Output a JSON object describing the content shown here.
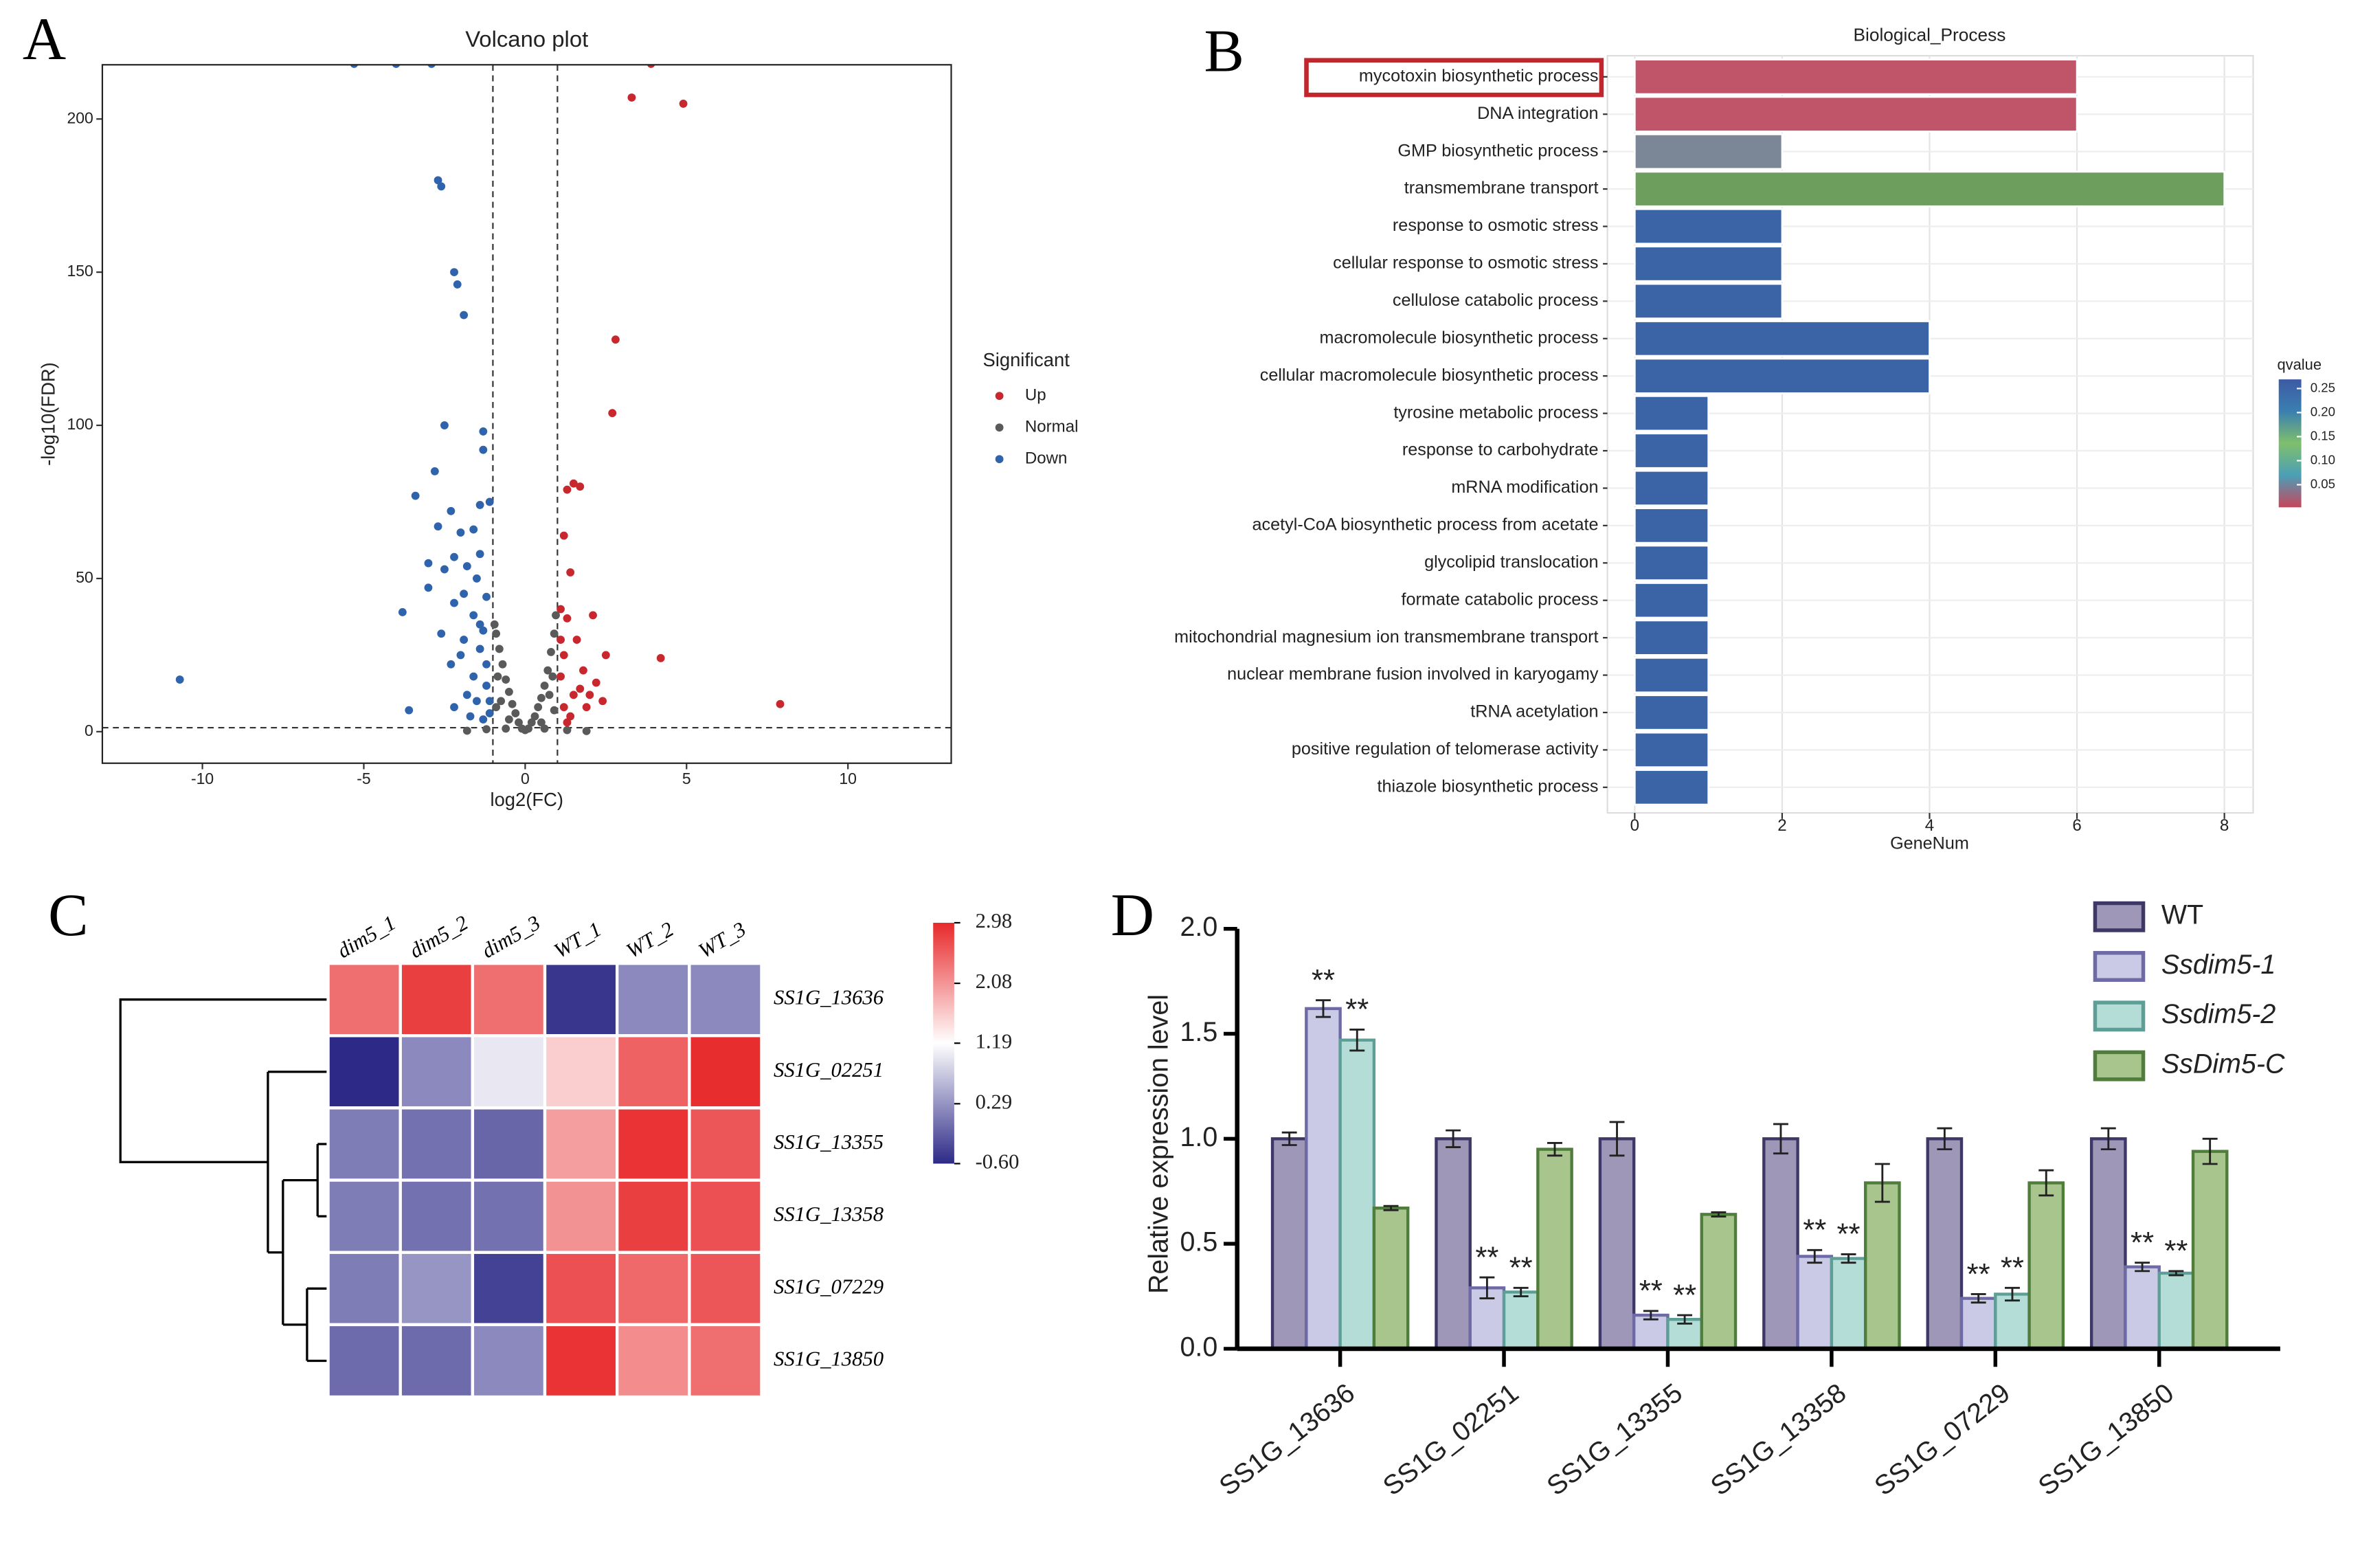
{
  "chart_data": [
    {
      "type": "scatter",
      "panel": "A",
      "title": "Volcano plot",
      "xlabel": "log2(FC)",
      "ylabel": "-log10(FDR)",
      "legend_title": "Significant",
      "xlim": [
        -13.1,
        13.2
      ],
      "ylim": [
        -10.3,
        217.7
      ],
      "xticks": [
        -10,
        -5,
        0,
        5,
        10
      ],
      "yticks": [
        0,
        50,
        100,
        150,
        200
      ],
      "thresholds": {
        "x": [
          -1,
          1
        ],
        "y": 1.3
      },
      "series": [
        {
          "name": "Up",
          "color": "#c8272e",
          "x": [
            3.9,
            3.3,
            4.9,
            2.8,
            2.7,
            1.7,
            1.5,
            1.3,
            1.2,
            1.4,
            1.1,
            1.3,
            2.1,
            4.2,
            1.6,
            1.2,
            2.5,
            1.8,
            1.1,
            2.2,
            1.5,
            1.9,
            1.2,
            7.9,
            1.3,
            2.0,
            1.7,
            1.1,
            2.4,
            1.4
          ],
          "values": [
            218,
            207,
            205,
            128,
            104,
            80,
            81,
            79,
            64,
            52,
            40,
            37,
            38,
            24,
            30,
            25,
            25,
            20,
            18,
            16,
            12,
            8,
            8,
            9,
            3,
            12,
            14,
            30,
            10,
            5
          ]
        },
        {
          "name": "Normal",
          "color": "#5a5a5a",
          "x": [
            -0.9,
            -0.8,
            -0.7,
            -0.6,
            -0.5,
            -0.4,
            -0.3,
            -0.2,
            -0.1,
            0,
            0.1,
            0.2,
            0.3,
            0.4,
            0.5,
            0.6,
            0.7,
            0.8,
            0.9,
            0.95,
            -0.95,
            -0.85,
            -0.75,
            0.75,
            0.85,
            -0.5,
            0.5,
            -1.2,
            1.3,
            -1.8,
            1.9,
            -0.6,
            0.6,
            -0.9,
            0.9
          ],
          "values": [
            32,
            27,
            22,
            17,
            13,
            9,
            6,
            3,
            1,
            0.5,
            1,
            3,
            5,
            8,
            11,
            15,
            20,
            26,
            32,
            38,
            35,
            18,
            10,
            12,
            18,
            4,
            3,
            0.8,
            0.5,
            0.3,
            0.2,
            1,
            1,
            8,
            7
          ]
        },
        {
          "name": "Down",
          "color": "#2f64ad",
          "x": [
            -5.3,
            -4,
            -2.9,
            -2.7,
            -2.6,
            -2.2,
            -2.1,
            -1.9,
            -2.5,
            -1.3,
            -2.8,
            -1.3,
            -3.4,
            -1.4,
            -2.3,
            -1.1,
            -2.0,
            -2.7,
            -1.6,
            -3.0,
            -1.4,
            -2.2,
            -1.8,
            -2.5,
            -1.5,
            -3.0,
            -1.9,
            -1.2,
            -3.8,
            -2.2,
            -1.6,
            -1.3,
            -2.6,
            -1.9,
            -1.4,
            -1.2,
            -2.3,
            -1.6,
            -1.8,
            -1.2,
            -1.5,
            -2.2,
            -1.1,
            -3.6,
            -10.7,
            -1.3,
            -1.7,
            -1.1,
            -1.4,
            -2.0
          ],
          "values": [
            218,
            218,
            218,
            180,
            178,
            150,
            146,
            136,
            100,
            98,
            85,
            92,
            77,
            74,
            72,
            75,
            65,
            67,
            66,
            55,
            58,
            57,
            54,
            53,
            50,
            47,
            45,
            44,
            39,
            42,
            38,
            33,
            32,
            30,
            27,
            22,
            22,
            18,
            12,
            15,
            10,
            8,
            6,
            7,
            17,
            4,
            5,
            10,
            35,
            25
          ]
        }
      ]
    },
    {
      "type": "hbar",
      "panel": "B",
      "title": "Biological_Process",
      "xlabel": "GeneNum",
      "categories": [
        "mycotoxin biosynthetic process",
        "DNA integration",
        "GMP biosynthetic process",
        "transmembrane transport",
        "response to osmotic stress",
        "cellular response to osmotic stress",
        "cellulose catabolic process",
        "macromolecule biosynthetic process",
        "cellular macromolecule biosynthetic process",
        "tyrosine metabolic process",
        "response to carbohydrate",
        "mRNA modification",
        "acetyl-CoA biosynthetic process from acetate",
        "glycolipid translocation",
        "formate catabolic process",
        "mitochondrial magnesium ion transmembrane transport",
        "nuclear membrane fusion involved in karyogamy",
        "tRNA acetylation",
        "positive regulation of telomerase activity",
        "thiazole biosynthetic process"
      ],
      "values": [
        6,
        6,
        2,
        8,
        2,
        2,
        2,
        4,
        4,
        1,
        1,
        1,
        1,
        1,
        1,
        1,
        1,
        1,
        1,
        1
      ],
      "colors": [
        "#c05468",
        "#c05468",
        "#7b8796",
        "#6e9e5e",
        "#3a64a6",
        "#3a64a6",
        "#3a64a6",
        "#3a64a6",
        "#3a64a6",
        "#3a64a6",
        "#3a64a6",
        "#3a64a6",
        "#3a64a6",
        "#3a64a6",
        "#3a64a6",
        "#3a64a6",
        "#3a64a6",
        "#3a64a6",
        "#3a64a6",
        "#3a64a6"
      ],
      "xlim": [
        -0.37,
        8.39
      ],
      "xticks": [
        0,
        2,
        4,
        6,
        8
      ],
      "grid": true,
      "colorbar": {
        "title": "qvalue",
        "lim": [
          0.003,
          0.269
        ],
        "ticks": [
          {
            "value": 0.25,
            "label": "0.25"
          },
          {
            "value": 0.2,
            "label": "0.20"
          },
          {
            "value": 0.15,
            "label": "0.15"
          },
          {
            "value": 0.1,
            "label": "0.10"
          },
          {
            "value": 0.05,
            "label": "0.05"
          }
        ],
        "colors": [
          "#c8455b",
          "#4b9fb7",
          "#7fbf6c",
          "#3b7fb0",
          "#3c5aa5"
        ]
      }
    },
    {
      "type": "heatmap",
      "panel": "C",
      "columns": [
        "dim5_1",
        "dim5_2",
        "dim5_3",
        "WT_1",
        "WT_2",
        "WT_3"
      ],
      "rows": [
        "SS1G_13636",
        "SS1G_02251",
        "SS1G_13355",
        "SS1G_13358",
        "SS1G_07229",
        "SS1G_13850"
      ],
      "values": [
        [
          2.4,
          2.8,
          2.4,
          -0.5,
          0.2,
          0.2
        ],
        [
          -0.6,
          0.2,
          1.0,
          1.6,
          2.5,
          2.95
        ],
        [
          0.1,
          0.0,
          -0.1,
          2.0,
          2.9,
          2.6
        ],
        [
          0.1,
          0.0,
          0.0,
          2.1,
          2.8,
          2.65
        ],
        [
          0.1,
          0.3,
          -0.4,
          2.65,
          2.45,
          2.6
        ],
        [
          -0.05,
          -0.05,
          0.2,
          2.9,
          2.15,
          2.4
        ]
      ],
      "lim": [
        -0.6,
        2.98
      ],
      "ticks": [
        2.98,
        2.08,
        1.19,
        0.29,
        {
          "value": -0.6,
          "label": "-0.60"
        }
      ],
      "colors": [
        "#2d2a87",
        "#ffffff",
        "#e8292b"
      ]
    },
    {
      "type": "groupedbar",
      "panel": "D",
      "ylabel": "Relative expression level",
      "categories": [
        "SS1G_13636",
        "SS1G_02251",
        "SS1G_13355",
        "SS1G_13358",
        "SS1G_07229",
        "SS1G_13850"
      ],
      "ylim": [
        0,
        2.0
      ],
      "yticks": [
        {
          "value": 0,
          "label": "0.0"
        },
        0.5,
        {
          "value": 1,
          "label": "1.0"
        },
        1.5,
        {
          "value": 2,
          "label": "2.0"
        }
      ],
      "series": [
        {
          "name": "WT",
          "color": "#9e97b8",
          "edgecolor": "#3e3867",
          "values": [
            1,
            1,
            1,
            1,
            1,
            1
          ],
          "errors": [
            0.03,
            0.04,
            0.08,
            0.07,
            0.05,
            0.05
          ]
        },
        {
          "name": "Ssdim5-1",
          "name_style": "italic",
          "color": "#cbcae6",
          "edgecolor": "#6d6aa6",
          "values": [
            1.62,
            0.29,
            0.16,
            0.44,
            0.24,
            0.39
          ],
          "errors": [
            0.04,
            0.05,
            0.02,
            0.03,
            0.02,
            0.02
          ],
          "annotations": [
            "**",
            "**",
            "**",
            "**",
            "**",
            "**"
          ]
        },
        {
          "name": "Ssdim5-2",
          "name_style": "italic",
          "color": "#b5ddd7",
          "edgecolor": "#5d9f97",
          "values": [
            1.47,
            0.27,
            0.14,
            0.43,
            0.26,
            0.36
          ],
          "errors": [
            0.05,
            0.02,
            0.02,
            0.02,
            0.03,
            0.01
          ],
          "annotations": [
            "**",
            "**",
            "**",
            "**",
            "**",
            "**"
          ]
        },
        {
          "name": "SsDim5-C",
          "name_style": "italic",
          "color": "#a9c58e",
          "edgecolor": "#4f7d3c",
          "values": [
            0.67,
            0.95,
            0.64,
            0.79,
            0.79,
            0.94
          ],
          "errors": [
            0.01,
            0.03,
            0.01,
            0.09,
            0.06,
            0.06
          ]
        }
      ]
    }
  ]
}
